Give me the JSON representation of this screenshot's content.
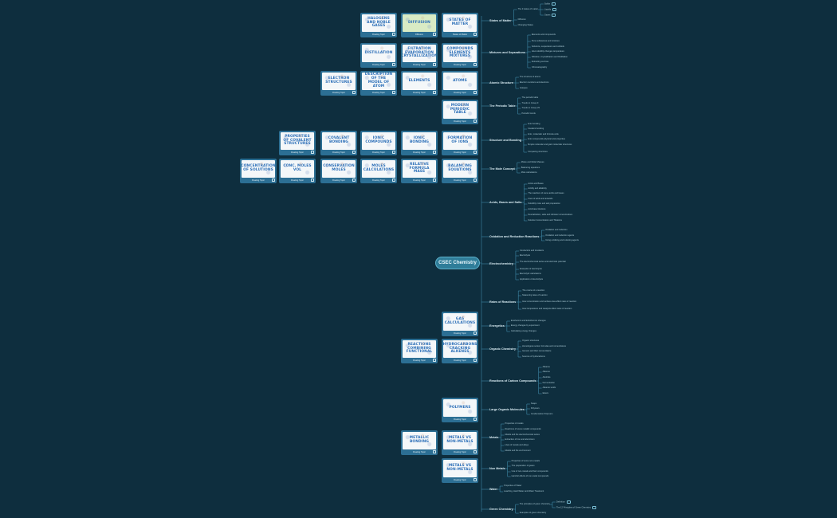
{
  "root": {
    "label": "CSEC Chemistry"
  },
  "branches": [
    {
      "id": "states",
      "label": "States of Matter",
      "children": [
        "The 3 states of matter",
        "Diffusion",
        "Changing States"
      ],
      "sub": [
        "Solids",
        "Liquids",
        "Gases"
      ]
    },
    {
      "id": "mixtures",
      "label": "Mixtures and Separations",
      "children": [
        "Elements and compounds",
        "Pure substances and mixtures",
        "Solutions, suspensions and colloids",
        "How solubility changes temperature",
        "Filtration, Crystallization and Distillation",
        "Extracting sucrose",
        "Chromatography"
      ]
    },
    {
      "id": "atomic",
      "label": "Atomic Structure",
      "children": [
        "The structure of atoms",
        "Electron numbers and electrons",
        "Isotopes"
      ]
    },
    {
      "id": "periodic",
      "label": "The Periodic Table",
      "children": [
        "The periodic table",
        "Trends in Group II",
        "Trends in Group VII",
        "Periodic trends"
      ]
    },
    {
      "id": "bonding",
      "label": "Structure and Bonding",
      "children": [
        "Ionic bonding",
        "Covalent bonding",
        "Ionic, molecular and formula units",
        "Ionic compounds physical and properties",
        "Simple molecular and giant molecular structures",
        "Comparing structures"
      ]
    },
    {
      "id": "mole",
      "label": "The Mole Concept",
      "children": [
        "Moles and Molar Masses",
        "Balancing equations",
        "Mole calculations"
      ]
    },
    {
      "id": "acids",
      "label": "Acids, Bases and Salts",
      "children": [
        "Acids and Bases",
        "Acidity and alkalinity",
        "The reactions of some acids and bases",
        "Uses of acids and antacids",
        "Solubility rules and salt preparation",
        "Acid-base titrations",
        "Neutralization, salts and indicator concentrations",
        "Solution Concentration and Titrations"
      ]
    },
    {
      "id": "redox",
      "label": "Oxidation and Reduction Reactions",
      "children": [
        "Oxidation and reduction",
        "Oxidation and reduction agents",
        "Using oxidising and reducing agents"
      ]
    },
    {
      "id": "electro",
      "label": "Electrochemistry",
      "children": [
        "Conductors and insulators",
        "Electrolysis",
        "The electrochemical series and electrode potential",
        "Examples of electrolysis",
        "Electrolytic calculations",
        "Application of electrolysis"
      ]
    },
    {
      "id": "rates",
      "label": "Rates of Reactions",
      "children": [
        "The course of a reaction",
        "Measuring rates of reaction",
        "How concentration and surface area affect rates of reaction",
        "How temperature and catalysts affect rates of reaction"
      ]
    },
    {
      "id": "energetics",
      "label": "Energetics",
      "children": [
        "Exothermic and Endothermic changes",
        "Energy changes by experiment",
        "Calculating energy changes"
      ]
    },
    {
      "id": "organic",
      "label": "Organic Chemistry",
      "children": [
        "Organic structures",
        "Homologous series: formulas and nomenclature",
        "Isomers and their nomenclature",
        "Sources of hydrocarbons"
      ]
    },
    {
      "id": "carbon",
      "label": "Reactions of Carbon Compounds",
      "children": [
        "Alkanes",
        "Alkenes",
        "Alcohols",
        "Fermentation",
        "Alkanoic acids",
        "Esters"
      ]
    },
    {
      "id": "large",
      "label": "Large Organic Molecules",
      "children": [
        "Soaps",
        "Polymers",
        "Condensation Polymers"
      ]
    },
    {
      "id": "metals",
      "label": "Metals",
      "children": [
        "Properties of metals",
        "Reactions of some metallic compounds",
        "Metals and the electrochemical series",
        "Extraction of iron and aluminium",
        "Uses of metals and alloys",
        "Metals and the environment"
      ]
    },
    {
      "id": "nonmetals",
      "label": "Non Metals",
      "children": [
        "Properties of some non-metals",
        "The preparation of gases",
        "Use of non-metals and their compounds",
        "Harmful effects of non-metal compounds"
      ]
    },
    {
      "id": "water",
      "label": "Water",
      "children": [
        "Properties of Water",
        "Leaching, Hard Water and Water Treatment"
      ]
    },
    {
      "id": "green",
      "label": "Green Chemistry",
      "children": [
        "The principles of green chemistry",
        "Examples of green chemistry"
      ],
      "sub": [
        "Definition",
        "The 12 Principles of Green Chemistry"
      ]
    }
  ],
  "cards": [
    {
      "id": "c1",
      "title": "Halogens and Noble Gases",
      "caption": "Floating Topic",
      "green": false
    },
    {
      "id": "c2",
      "title": "Diffusion",
      "caption": "Diffusion",
      "green": true
    },
    {
      "id": "c3",
      "title": "States of Matter",
      "caption": "States of Matter",
      "green": false
    },
    {
      "id": "c4",
      "title": "Distillation",
      "caption": "Floating Topic",
      "green": false
    },
    {
      "id": "c5",
      "title": "Filtration Evaporation Crystallization",
      "caption": "Floating Topic",
      "green": false
    },
    {
      "id": "c6",
      "title": "Compounds Elements Mixtures",
      "caption": "Floating Topic",
      "green": false
    },
    {
      "id": "c7",
      "title": "Electron Structures",
      "caption": "Floating Topic",
      "green": false
    },
    {
      "id": "c8",
      "title": "Description of the Model of Atom",
      "caption": "Floating Topic",
      "green": false
    },
    {
      "id": "c9",
      "title": "Elements",
      "caption": "Floating Topic",
      "green": false
    },
    {
      "id": "c10",
      "title": "Atoms",
      "caption": "Floating Topic",
      "green": false
    },
    {
      "id": "c11",
      "title": "Modern Periodic Table",
      "caption": "Floating Topic",
      "green": false
    },
    {
      "id": "c12",
      "title": "Properties of Covalent Structures",
      "caption": "Floating Topic",
      "green": false
    },
    {
      "id": "c13",
      "title": "Covalent Bonding",
      "caption": "Floating Topic",
      "green": false
    },
    {
      "id": "c14",
      "title": "Ionic Compounds",
      "caption": "Floating Topic",
      "green": false
    },
    {
      "id": "c15",
      "title": "Ionic Bonding",
      "caption": "Floating Topic",
      "green": false
    },
    {
      "id": "c16",
      "title": "Formation of Ions",
      "caption": "Floating Topic",
      "green": false
    },
    {
      "id": "c17",
      "title": "Concentration of Solutions",
      "caption": "Floating Topic",
      "green": false
    },
    {
      "id": "c18",
      "title": "Conc. Moles Vol",
      "caption": "Floating Topic",
      "green": false
    },
    {
      "id": "c19",
      "title": "Conservation Moles",
      "caption": "Floating Topic",
      "green": false
    },
    {
      "id": "c20",
      "title": "Moles Calculations",
      "caption": "Floating Topic",
      "green": false
    },
    {
      "id": "c21",
      "title": "Relative Formula Mass",
      "caption": "Floating Topic",
      "green": false
    },
    {
      "id": "c22",
      "title": "Balancing Equations",
      "caption": "Floating Topic",
      "green": false
    },
    {
      "id": "c23",
      "title": "Gas Calculations",
      "caption": "Floating Topic",
      "green": false
    },
    {
      "id": "c24",
      "title": "Reactions Combining Functional",
      "caption": "Floating Topic",
      "green": false
    },
    {
      "id": "c25",
      "title": "Hydrocarbons Cracking Alkenes",
      "caption": "Floating Topic",
      "green": false
    },
    {
      "id": "c26",
      "title": "Polymers",
      "caption": "Floating Topic",
      "green": false
    },
    {
      "id": "c27",
      "title": "Metallic Bonding",
      "caption": "Floating Topic",
      "green": false
    },
    {
      "id": "c28",
      "title": "Metals vs Non-Metals",
      "caption": "Floating Topic",
      "green": false
    },
    {
      "id": "c29",
      "title": "Metals vs Non-Metals",
      "caption": "Floating Topic",
      "green": false
    }
  ]
}
